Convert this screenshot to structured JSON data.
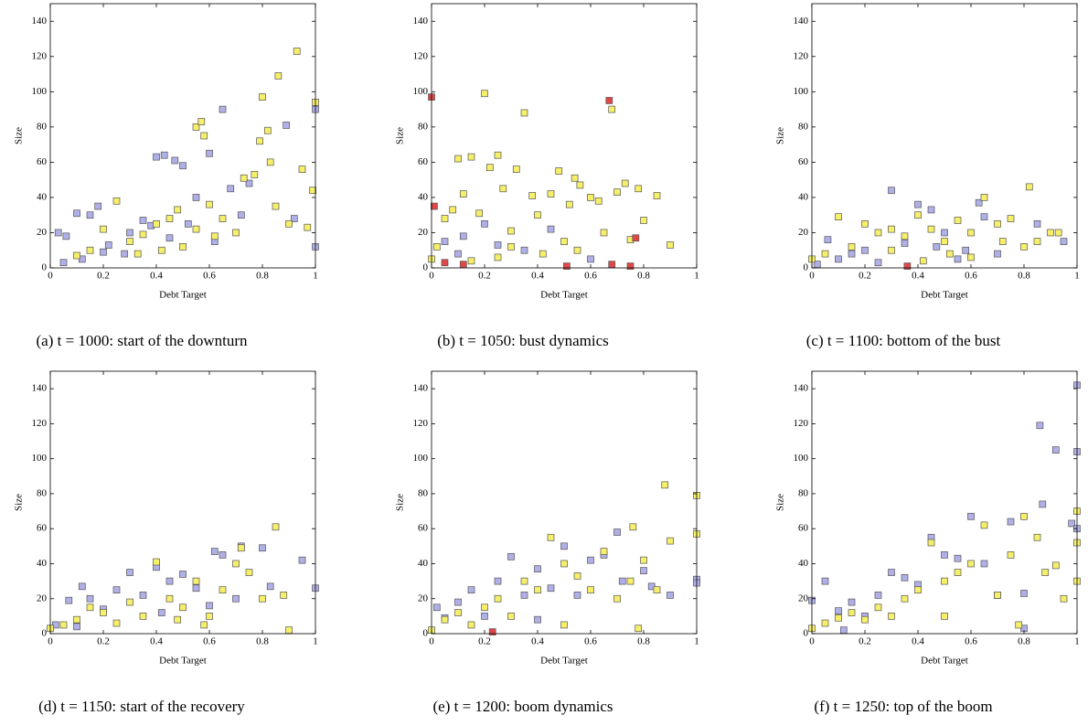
{
  "chart_data": [
    {
      "type": "scatter",
      "caption": "(a) t = 1000: start of the downturn",
      "xlabel": "Debt Target",
      "ylabel": "Size",
      "xlim": [
        0,
        1
      ],
      "ylim": [
        0,
        150
      ],
      "xticks": [
        0,
        0.2,
        0.4,
        0.6,
        0.8,
        1
      ],
      "yticks": [
        0,
        20,
        40,
        60,
        80,
        100,
        120,
        140
      ],
      "series": [
        {
          "color": "#b0b0e8",
          "x": [
            0.03,
            0.06,
            0.1,
            0.15,
            0.18,
            0.22,
            0.28,
            0.35,
            0.38,
            0.4,
            0.43,
            0.47,
            0.5,
            0.55,
            0.6,
            0.65,
            0.68,
            0.89,
            0.92,
            1.0,
            1.0,
            0.75,
            0.3,
            0.12,
            0.05,
            0.2,
            0.45,
            0.52,
            0.62,
            0.72
          ],
          "values": [
            20,
            18,
            31,
            30,
            35,
            13,
            8,
            27,
            24,
            63,
            64,
            61,
            58,
            40,
            65,
            90,
            45,
            81,
            28,
            90,
            12,
            48,
            20,
            5,
            3,
            9,
            17,
            25,
            15,
            30
          ]
        },
        {
          "color": "#f5ef6a",
          "x": [
            0.55,
            0.57,
            0.93,
            0.86,
            0.8,
            0.58,
            1.0,
            0.99,
            0.95,
            0.79,
            0.82,
            0.83,
            0.77,
            0.73,
            0.6,
            0.48,
            0.45,
            0.4,
            0.35,
            0.3,
            0.25,
            0.2,
            0.15,
            0.1,
            0.5,
            0.62,
            0.7,
            0.85,
            0.9,
            0.65,
            0.42,
            0.33,
            0.55,
            0.97
          ],
          "values": [
            80,
            83,
            123,
            109,
            97,
            75,
            94,
            44,
            56,
            72,
            78,
            60,
            53,
            51,
            36,
            33,
            28,
            25,
            19,
            15,
            38,
            22,
            10,
            7,
            12,
            18,
            20,
            35,
            25,
            28,
            10,
            8,
            22,
            23
          ]
        }
      ]
    },
    {
      "type": "scatter",
      "caption": "(b) t = 1050: bust dynamics",
      "xlabel": "Debt Target",
      "ylabel": "Size",
      "xlim": [
        0,
        1
      ],
      "ylim": [
        0,
        150
      ],
      "xticks": [
        0,
        0.2,
        0.4,
        0.6,
        0.8,
        1
      ],
      "yticks": [
        0,
        20,
        40,
        60,
        80,
        100,
        120,
        140
      ],
      "series": [
        {
          "color": "#b0b0e8",
          "x": [
            0.05,
            0.1,
            0.2,
            0.25,
            0.35,
            0.45,
            0.12,
            0.6
          ],
          "values": [
            15,
            8,
            25,
            13,
            10,
            22,
            18,
            5
          ]
        },
        {
          "color": "#f5ef6a",
          "x": [
            0.0,
            0.02,
            0.05,
            0.08,
            0.1,
            0.12,
            0.15,
            0.18,
            0.2,
            0.22,
            0.25,
            0.27,
            0.3,
            0.32,
            0.35,
            0.38,
            0.4,
            0.45,
            0.48,
            0.52,
            0.54,
            0.56,
            0.6,
            0.63,
            0.68,
            0.7,
            0.73,
            0.78,
            0.8,
            0.85,
            0.9,
            0.5,
            0.42,
            0.3,
            0.25,
            0.15,
            0.65,
            0.75,
            0.55
          ],
          "values": [
            5,
            12,
            28,
            33,
            62,
            42,
            63,
            31,
            99,
            57,
            64,
            45,
            21,
            56,
            88,
            41,
            30,
            42,
            55,
            36,
            51,
            47,
            40,
            38,
            90,
            43,
            48,
            45,
            27,
            41,
            13,
            15,
            8,
            12,
            6,
            4,
            20,
            16,
            10
          ]
        },
        {
          "color": "#e04848",
          "x": [
            0.0,
            0.01,
            0.05,
            0.12,
            0.51,
            0.67,
            0.68,
            0.75,
            0.77
          ],
          "values": [
            97,
            35,
            3,
            2,
            1,
            95,
            2,
            1,
            17
          ]
        }
      ]
    },
    {
      "type": "scatter",
      "caption": "(c) t = 1100: bottom of the bust",
      "xlabel": "Debt Target",
      "ylabel": "Size",
      "xlim": [
        0,
        1
      ],
      "ylim": [
        0,
        150
      ],
      "xticks": [
        0,
        0.2,
        0.4,
        0.6,
        0.8,
        1
      ],
      "yticks": [
        0,
        20,
        40,
        60,
        80,
        100,
        120,
        140
      ],
      "series": [
        {
          "color": "#b0b0e8",
          "x": [
            0.02,
            0.06,
            0.1,
            0.15,
            0.2,
            0.3,
            0.35,
            0.4,
            0.45,
            0.5,
            0.55,
            0.58,
            0.63,
            0.65,
            0.85,
            0.95,
            0.25,
            0.47,
            0.7
          ],
          "values": [
            2,
            16,
            5,
            8,
            10,
            44,
            14,
            36,
            33,
            20,
            5,
            10,
            37,
            29,
            25,
            15,
            3,
            12,
            8
          ]
        },
        {
          "color": "#f5ef6a",
          "x": [
            0.0,
            0.05,
            0.1,
            0.15,
            0.2,
            0.25,
            0.3,
            0.35,
            0.4,
            0.45,
            0.5,
            0.55,
            0.6,
            0.65,
            0.7,
            0.75,
            0.8,
            0.82,
            0.85,
            0.9,
            0.93,
            0.52,
            0.42,
            0.3,
            0.6,
            0.72
          ],
          "values": [
            5,
            8,
            29,
            12,
            25,
            20,
            22,
            18,
            30,
            22,
            15,
            27,
            20,
            40,
            25,
            28,
            12,
            46,
            15,
            20,
            20,
            8,
            4,
            10,
            6,
            15
          ]
        },
        {
          "color": "#e04848",
          "x": [
            0.36
          ],
          "values": [
            1
          ]
        }
      ]
    },
    {
      "type": "scatter",
      "caption": "(d) t = 1150: start of the recovery",
      "xlabel": "Debt Target",
      "ylabel": "Size",
      "xlim": [
        0,
        1
      ],
      "ylim": [
        0,
        150
      ],
      "xticks": [
        0,
        0.2,
        0.4,
        0.6,
        0.8,
        1
      ],
      "yticks": [
        0,
        20,
        40,
        60,
        80,
        100,
        120,
        140
      ],
      "series": [
        {
          "color": "#b0b0e8",
          "x": [
            0.02,
            0.07,
            0.12,
            0.15,
            0.2,
            0.25,
            0.3,
            0.35,
            0.4,
            0.45,
            0.5,
            0.55,
            0.62,
            0.65,
            0.7,
            0.72,
            0.8,
            0.83,
            0.95,
            1.0,
            0.1,
            0.42,
            0.6
          ],
          "values": [
            5,
            19,
            27,
            20,
            14,
            25,
            35,
            22,
            38,
            30,
            34,
            26,
            47,
            45,
            20,
            50,
            49,
            27,
            42,
            26,
            4,
            12,
            16
          ]
        },
        {
          "color": "#f5ef6a",
          "x": [
            0.0,
            0.05,
            0.1,
            0.15,
            0.2,
            0.25,
            0.3,
            0.35,
            0.4,
            0.45,
            0.5,
            0.55,
            0.6,
            0.65,
            0.7,
            0.72,
            0.75,
            0.8,
            0.85,
            0.88,
            0.9,
            0.48,
            0.58
          ],
          "values": [
            3,
            5,
            8,
            15,
            12,
            6,
            18,
            10,
            41,
            20,
            15,
            30,
            10,
            25,
            40,
            49,
            35,
            20,
            61,
            22,
            2,
            8,
            5
          ]
        }
      ]
    },
    {
      "type": "scatter",
      "caption": "(e) t = 1200: boom dynamics",
      "xlabel": "Debt Target",
      "ylabel": "Size",
      "xlim": [
        0,
        1
      ],
      "ylim": [
        0,
        150
      ],
      "xticks": [
        0,
        0.2,
        0.4,
        0.6,
        0.8,
        1
      ],
      "yticks": [
        0,
        20,
        40,
        60,
        80,
        100,
        120,
        140
      ],
      "series": [
        {
          "color": "#b0b0e8",
          "x": [
            0.02,
            0.05,
            0.1,
            0.15,
            0.2,
            0.25,
            0.3,
            0.35,
            0.4,
            0.45,
            0.5,
            0.55,
            0.6,
            0.65,
            0.7,
            0.72,
            0.8,
            0.83,
            0.9,
            1.0,
            1.0,
            0.4
          ],
          "values": [
            15,
            9,
            18,
            25,
            10,
            30,
            44,
            22,
            37,
            26,
            50,
            22,
            42,
            45,
            58,
            30,
            36,
            27,
            22,
            31,
            29,
            8
          ]
        },
        {
          "color": "#f5ef6a",
          "x": [
            0.0,
            0.05,
            0.1,
            0.15,
            0.2,
            0.25,
            0.3,
            0.35,
            0.4,
            0.45,
            0.5,
            0.55,
            0.6,
            0.65,
            0.7,
            0.75,
            0.76,
            0.8,
            0.85,
            0.88,
            0.9,
            1.0,
            1.0,
            0.78,
            0.5
          ],
          "values": [
            2,
            8,
            12,
            5,
            15,
            20,
            10,
            30,
            25,
            55,
            40,
            33,
            25,
            47,
            20,
            30,
            61,
            42,
            25,
            85,
            53,
            79,
            57,
            3,
            5
          ]
        },
        {
          "color": "#e04848",
          "x": [
            0.23
          ],
          "values": [
            1
          ]
        }
      ]
    },
    {
      "type": "scatter",
      "caption": "(f) t = 1250: top of the boom",
      "xlabel": "Debt Target",
      "ylabel": "Size",
      "xlim": [
        0,
        1
      ],
      "ylim": [
        0,
        150
      ],
      "xticks": [
        0,
        0.2,
        0.4,
        0.6,
        0.8,
        1
      ],
      "yticks": [
        0,
        20,
        40,
        60,
        80,
        100,
        120,
        140
      ],
      "series": [
        {
          "color": "#b0b0e8",
          "x": [
            0.0,
            0.05,
            0.1,
            0.15,
            0.2,
            0.25,
            0.3,
            0.35,
            0.4,
            0.45,
            0.5,
            0.55,
            0.6,
            0.65,
            0.7,
            0.75,
            0.8,
            0.86,
            0.87,
            0.92,
            0.98,
            1.0,
            1.0,
            1.0,
            0.8,
            0.12
          ],
          "values": [
            19,
            30,
            13,
            18,
            10,
            22,
            35,
            32,
            28,
            55,
            45,
            43,
            67,
            40,
            22,
            64,
            23,
            119,
            74,
            105,
            63,
            142,
            104,
            60,
            3,
            2
          ]
        },
        {
          "color": "#f5ef6a",
          "x": [
            0.0,
            0.05,
            0.1,
            0.15,
            0.2,
            0.25,
            0.3,
            0.35,
            0.4,
            0.45,
            0.5,
            0.55,
            0.6,
            0.65,
            0.7,
            0.75,
            0.8,
            0.85,
            0.88,
            0.92,
            0.95,
            1.0,
            1.0,
            1.0,
            0.78,
            0.5
          ],
          "values": [
            3,
            6,
            9,
            12,
            8,
            15,
            10,
            20,
            25,
            52,
            30,
            35,
            40,
            62,
            22,
            45,
            67,
            55,
            35,
            39,
            20,
            70,
            52,
            30,
            5,
            10
          ]
        }
      ]
    }
  ]
}
